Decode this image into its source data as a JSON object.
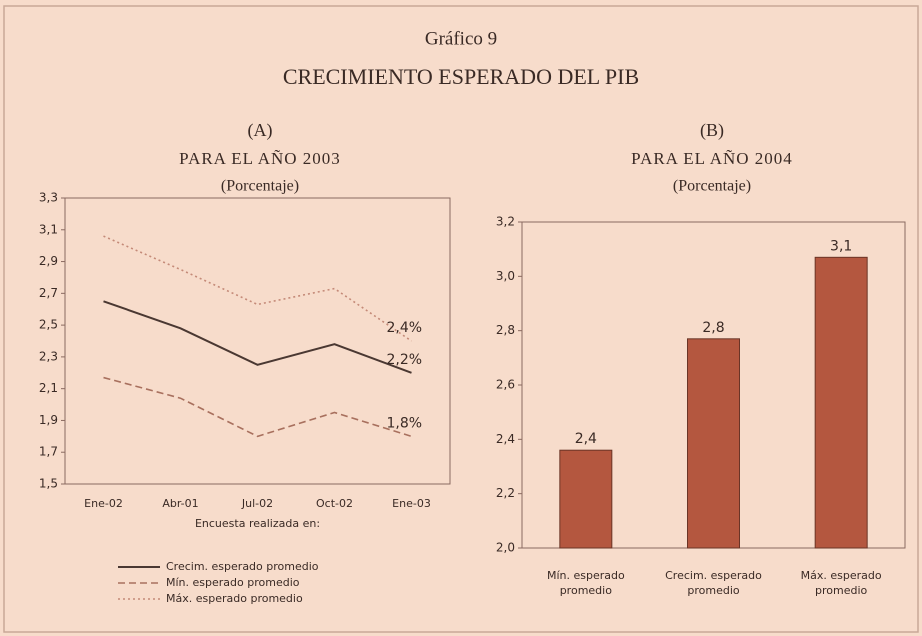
{
  "header": {
    "label": "Gráfico 9",
    "title": "CRECIMIENTO ESPERADO DEL PIB"
  },
  "chart_data": [
    {
      "type": "line",
      "panel": "(A)",
      "title": "PARA EL AÑO 2003",
      "subtitle": "(Porcentaje)",
      "x_label": "Encuesta realizada en:",
      "categories": [
        "Ene-02",
        "Abr-01",
        "Jul-02",
        "Oct-02",
        "Ene-03"
      ],
      "series": [
        {
          "name": "Crecim. esperado promedio",
          "color": "#4a3832",
          "dash": "solid",
          "values": [
            2.65,
            2.48,
            2.25,
            2.38,
            2.2
          ],
          "value_labels": [
            null,
            null,
            null,
            null,
            "2,2%"
          ]
        },
        {
          "name": "Mín. esperado promedio",
          "color": "#a8705e",
          "dash": "dashed",
          "values": [
            2.17,
            2.04,
            1.8,
            1.95,
            1.8
          ],
          "value_labels": [
            null,
            null,
            null,
            null,
            "1,8%"
          ]
        },
        {
          "name": "Máx. esperado promedio",
          "color": "#c48a78",
          "dash": "dotted",
          "values": [
            3.06,
            2.85,
            2.63,
            2.73,
            2.4
          ],
          "value_labels": [
            null,
            null,
            null,
            null,
            "2,4%"
          ]
        }
      ],
      "ylim": [
        1.5,
        3.3
      ],
      "yticks": [
        {
          "value": 1.5,
          "label": "1,5"
        },
        {
          "value": 1.7,
          "label": "1,7"
        },
        {
          "value": 1.9,
          "label": "1,9"
        },
        {
          "value": 2.1,
          "label": "2,1"
        },
        {
          "value": 2.3,
          "label": "2,3"
        },
        {
          "value": 2.5,
          "label": "2,5"
        },
        {
          "value": 2.7,
          "label": "2,7"
        },
        {
          "value": 2.9,
          "label": "2,9"
        },
        {
          "value": 3.1,
          "label": "3,1"
        },
        {
          "value": 3.3,
          "label": "3,3"
        }
      ],
      "legend": "bottom-left"
    },
    {
      "type": "bar",
      "panel": "(B)",
      "title": "PARA EL AÑO 2004",
      "subtitle": "(Porcentaje)",
      "categories": [
        "Mín. esperado promedio",
        "Crecim. esperado promedio",
        "Máx. esperado promedio"
      ],
      "values": [
        2.36,
        2.77,
        3.07
      ],
      "value_labels": [
        "2,4",
        "2,8",
        "3,1"
      ],
      "color": "#b4573f",
      "ylim": [
        2.0,
        3.2
      ],
      "yticks": [
        {
          "value": 2.0,
          "label": "2,0"
        },
        {
          "value": 2.2,
          "label": "2,2"
        },
        {
          "value": 2.4,
          "label": "2,4"
        },
        {
          "value": 2.6,
          "label": "2,6"
        },
        {
          "value": 2.8,
          "label": "2,8"
        },
        {
          "value": 3.0,
          "label": "3,0"
        },
        {
          "value": 3.2,
          "label": "3,2"
        }
      ]
    }
  ]
}
